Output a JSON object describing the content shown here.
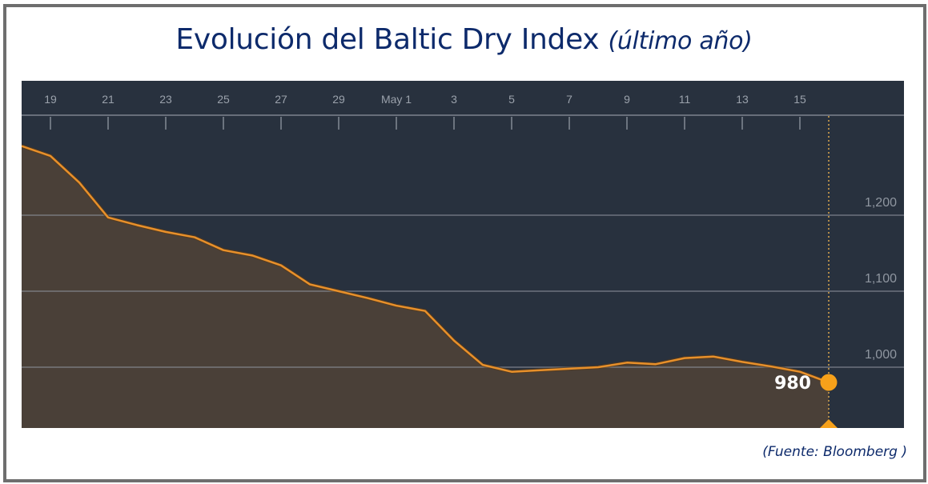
{
  "title": {
    "main": "Evolución del Baltic Dry Index",
    "subtitle": "(último año)"
  },
  "source": "(Fuente: Bloomberg )",
  "colors": {
    "title": "#0d2a6b",
    "panel_bg": "#28313e",
    "area_fill": "#4a4038",
    "line": "#e8902a",
    "marker": "#f7a11a",
    "gridline": "#8a8f99"
  },
  "last_value_label": "980",
  "chart_data": {
    "type": "area",
    "title": "Evolución del Baltic Dry Index (último año)",
    "xlabel": "",
    "ylabel": "",
    "x_tick_labels": [
      "19",
      "21",
      "23",
      "25",
      "27",
      "29",
      "May 1",
      "3",
      "5",
      "7",
      "9",
      "11",
      "13",
      "15"
    ],
    "y_tick_labels": [
      "1,000",
      "1,100",
      "1,200"
    ],
    "y_ticks": [
      1000,
      1100,
      1200
    ],
    "ylim": [
      920,
      1310
    ],
    "grid": true,
    "legend": null,
    "annotation": {
      "label": "980",
      "value": 980,
      "day": "16 May"
    },
    "x": [
      "18 Apr",
      "19 Apr",
      "20 Apr",
      "21 Apr",
      "22 Apr",
      "23 Apr",
      "24 Apr",
      "25 Apr",
      "26 Apr",
      "27 Apr",
      "28 Apr",
      "29 Apr",
      "30 Apr",
      "1 May",
      "2 May",
      "3 May",
      "4 May",
      "5 May",
      "6 May",
      "7 May",
      "8 May",
      "9 May",
      "10 May",
      "11 May",
      "12 May",
      "13 May",
      "14 May",
      "15 May",
      "16 May"
    ],
    "series": [
      {
        "name": "Baltic Dry Index",
        "values": [
          1291,
          1278,
          1243,
          1197,
          1187,
          1178,
          1171,
          1154,
          1147,
          1134,
          1109,
          1100,
          1091,
          1081,
          1074,
          1035,
          1003,
          994,
          996,
          998,
          1000,
          1006,
          1004,
          1012,
          1014,
          1007,
          1001,
          994,
          980
        ]
      }
    ]
  }
}
